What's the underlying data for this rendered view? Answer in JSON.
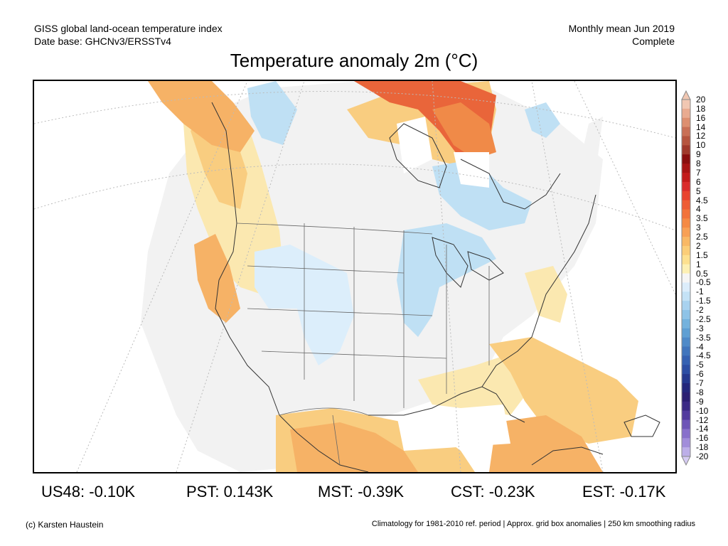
{
  "header": {
    "left_line1": "GISS global land-ocean temperature index",
    "left_line2": "Date base: GHCNv3/ERSSTv4",
    "right_line1": "Monthly mean Jun 2019",
    "right_line2": "Complete"
  },
  "title": "Temperature anomaly 2m (°C)",
  "colorbar": {
    "labels": [
      "20",
      "18",
      "16",
      "14",
      "12",
      "10",
      "9",
      "8",
      "7",
      "6",
      "5",
      "4.5",
      "4",
      "3.5",
      "3",
      "2.5",
      "2",
      "1.5",
      "1",
      "0.5",
      "-0.5",
      "-1",
      "-1.5",
      "-2",
      "-2.5",
      "-3",
      "-3.5",
      "-4",
      "-4.5",
      "-5",
      "-6",
      "-7",
      "-8",
      "-9",
      "-10",
      "-12",
      "-14",
      "-16",
      "-18",
      "-20"
    ],
    "colors": [
      "#f1c7b2",
      "#e9ab90",
      "#dd8f70",
      "#c97056",
      "#b6553f",
      "#a0392b",
      "#8a0e0e",
      "#a81414",
      "#c31b1b",
      "#da2b2b",
      "#e9422e",
      "#ee5c34",
      "#f2733a",
      "#f58a44",
      "#f8a055",
      "#f9b865",
      "#fbcd78",
      "#fde08f",
      "#fdf0b4",
      "#f5f5f5",
      "#dcedfb",
      "#c4e2f6",
      "#a8d2ef",
      "#8ec3e7",
      "#74b2dd",
      "#5f9fd3",
      "#4f8ac8",
      "#4175bd",
      "#3561b2",
      "#2c4ea4",
      "#25398f",
      "#24277c",
      "#2b1f72",
      "#3b2a85",
      "#523a9e",
      "#6d54b7",
      "#8870cb",
      "#a18dda",
      "#bcaee8",
      "#d5cbf3"
    ]
  },
  "stats": [
    {
      "label": "US48: -0.10K"
    },
    {
      "label": "PST: 0.143K"
    },
    {
      "label": "MST: -0.39K"
    },
    {
      "label": "CST: -0.23K"
    },
    {
      "label": "EST: -0.17K"
    }
  ],
  "footer": {
    "left": "(c) Karsten Haustein",
    "right": "Climatology for 1981-2010 ref. period | Approx. grid box anomalies | 250 km smoothing radius"
  },
  "colors": {
    "no_data": "#ffffff",
    "neutral": "#f2f2f2",
    "warm_1": "#fbe8b0",
    "warm_2": "#f9cd80",
    "warm_3": "#f6b266",
    "warm_4": "#f08a48",
    "warm_5": "#e9653a",
    "cool_1": "#dceefb",
    "cool_2": "#bfe0f4",
    "cool_3": "#8ec3e7",
    "border": "#333333",
    "grid": "#bbbbbb"
  }
}
